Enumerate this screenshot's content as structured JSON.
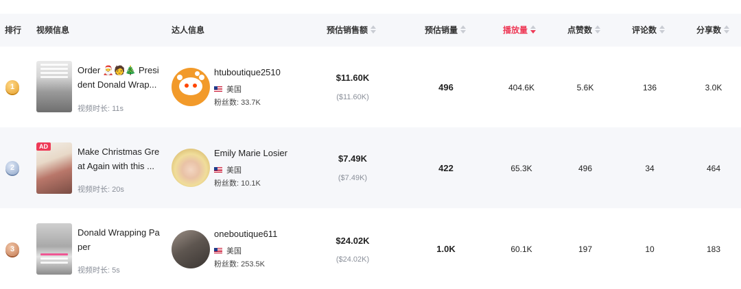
{
  "headers": {
    "rank": "排行",
    "video": "视频信息",
    "creator": "达人信息",
    "est_sales_amount": "预估销售额",
    "est_sales_volume": "预估销量",
    "views": "播放量",
    "likes": "点赞数",
    "comments": "评论数",
    "shares": "分享数"
  },
  "active_sort": "views",
  "active_color": "#ee3a57",
  "rows": [
    {
      "rank": "1",
      "medal": "gold",
      "video_title": "Order 🎅🧑🎄 President Donald Wrap...",
      "duration": "视频时长: 11s",
      "creator_name": "htuboutique2510",
      "country": "美国",
      "fans": "粉丝数: 33.7K",
      "sales": "$11.60K",
      "sales_sub": "($11.60K)",
      "volume": "496",
      "views": "404.6K",
      "likes": "5.6K",
      "comments": "136",
      "shares": "3.0K"
    },
    {
      "rank": "2",
      "medal": "silver",
      "ad_label": "AD",
      "video_title": "Make Christmas Great Again with this ...",
      "duration": "视频时长: 20s",
      "creator_name": "Emily Marie Losier",
      "country": "美国",
      "fans": "粉丝数: 10.1K",
      "sales": "$7.49K",
      "sales_sub": "($7.49K)",
      "volume": "422",
      "views": "65.3K",
      "likes": "496",
      "comments": "34",
      "shares": "464"
    },
    {
      "rank": "3",
      "medal": "bronze",
      "video_title": "Donald Wrapping Paper",
      "duration": "视频时长: 5s",
      "creator_name": "oneboutique611",
      "country": "美国",
      "fans": "粉丝数: 253.5K",
      "sales": "$24.02K",
      "sales_sub": "($24.02K)",
      "volume": "1.0K",
      "views": "60.1K",
      "likes": "197",
      "comments": "10",
      "shares": "183"
    }
  ]
}
